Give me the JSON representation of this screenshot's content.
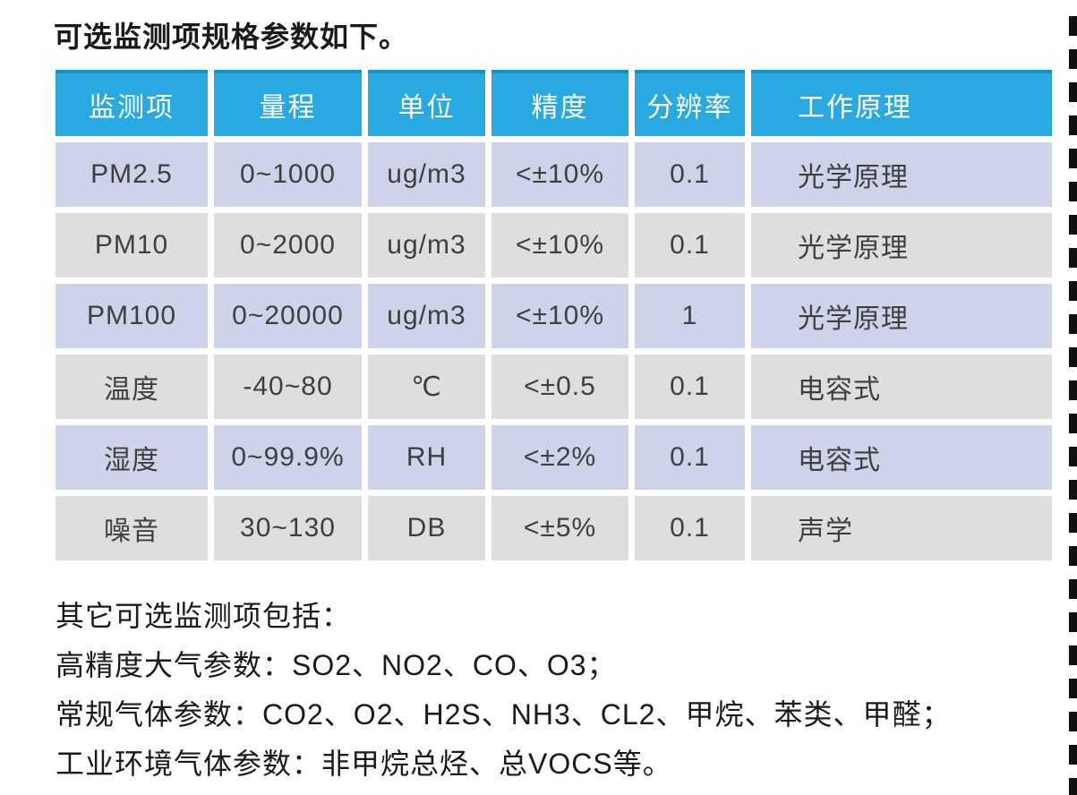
{
  "page": {
    "title": "可选监测项规格参数如下。"
  },
  "table": {
    "headers": [
      "监测项",
      "量程",
      "单位",
      "精度",
      "分辨率",
      "工作原理"
    ],
    "rows": [
      [
        "PM2.5",
        "0~1000",
        "ug/m3",
        "<±10%",
        "0.1",
        "光学原理"
      ],
      [
        "PM10",
        "0~2000",
        "ug/m3",
        "<±10%",
        "0.1",
        "光学原理"
      ],
      [
        "PM100",
        "0~20000",
        "ug/m3",
        "<±10%",
        "1",
        "光学原理"
      ],
      [
        "温度",
        "-40~80",
        "℃",
        "<±0.5",
        "0.1",
        "电容式"
      ],
      [
        "湿度",
        "0~99.9%",
        "RH",
        "<±2%",
        "0.1",
        "电容式"
      ],
      [
        "噪音",
        "30~130",
        "DB",
        "<±5%",
        "0.1",
        "声学"
      ]
    ]
  },
  "notes": {
    "intro": "其它可选监测项包括：",
    "lines": [
      "高精度大气参数：SO2、NO2、CO、O3；",
      "常规气体参数：CO2、O2、H2S、NH3、CL2、甲烷、苯类、甲醛；",
      "工业环境气体参数：非甲烷总烃、总VOCS等。"
    ]
  },
  "colors": {
    "header_bg": "#29a9e1",
    "header_top_edge": "#1a8fc6",
    "header_text": "#ffffff",
    "row_odd_bg": "#cdd4e9",
    "row_even_bg": "#dedede",
    "body_text": "#3f3f3f",
    "title_text": "#1a1a1a",
    "dashed_border": "#111111"
  }
}
